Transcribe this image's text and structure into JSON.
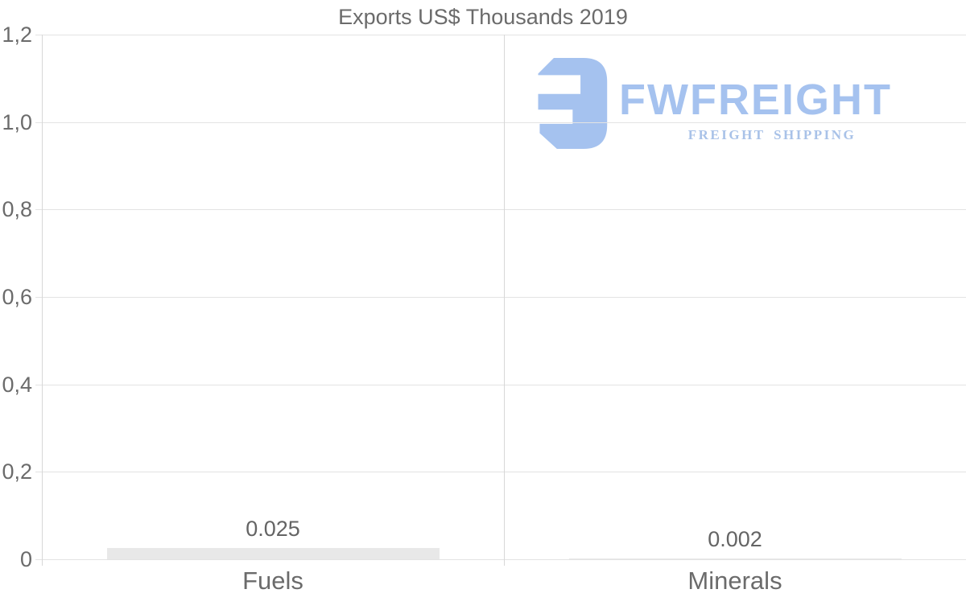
{
  "colors": {
    "text": "#6b6b6b",
    "value_text": "#646464",
    "gridline": "#e3e3e3",
    "axis_line": "#d7d7d7",
    "bar": "#e8e8e8",
    "logo_blue": "#a5c2ef",
    "logo_tagline_blue": "#a9c2e8",
    "background": "#ffffff"
  },
  "chart_data": {
    "type": "bar",
    "title": "Exports US$ Thousands 2019",
    "categories": [
      "Fuels",
      "Minerals"
    ],
    "values": [
      0.025,
      0.002
    ],
    "value_labels": [
      "0.025",
      "0.002"
    ],
    "y_ticks": [
      {
        "label": "0",
        "value": 0
      },
      {
        "label": "0,2",
        "value": 0.2
      },
      {
        "label": "0,4",
        "value": 0.4
      },
      {
        "label": "0,6",
        "value": 0.6
      },
      {
        "label": "0,8",
        "value": 0.8
      },
      {
        "label": "1,0",
        "value": 1.0
      },
      {
        "label": "1,2",
        "value": 1.2
      }
    ],
    "ylim": [
      0,
      1.2
    ],
    "xlabel": "",
    "ylabel": "",
    "grid": "horizontal",
    "legend": "none"
  },
  "watermark": {
    "brand": "FWFREIGHT",
    "tagline": "FREIGHT SHIPPING",
    "icon": "fwfreight-f-mark-icon"
  }
}
